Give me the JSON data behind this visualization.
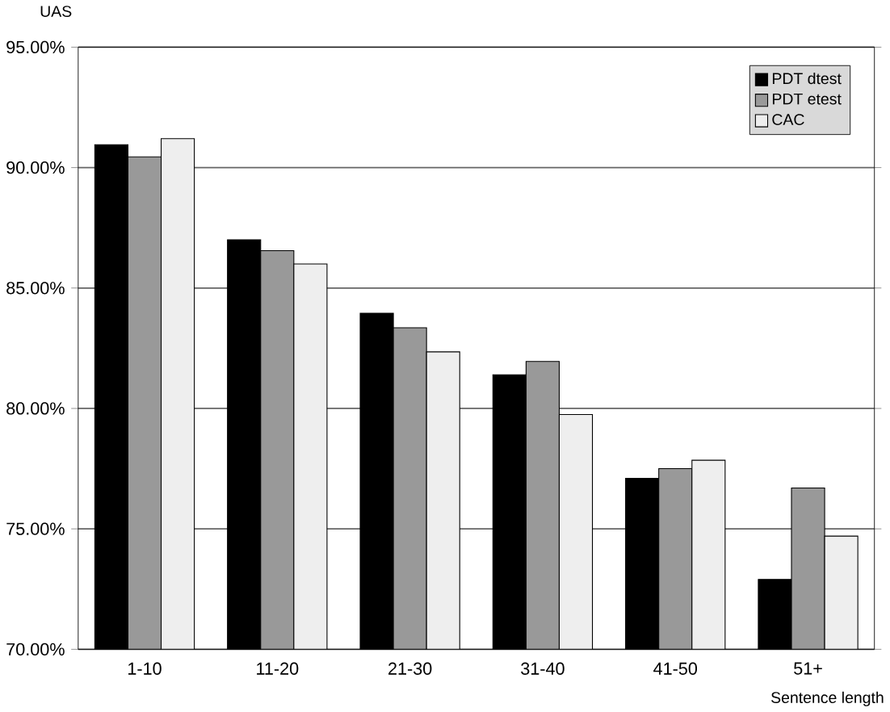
{
  "chart_data": {
    "type": "bar",
    "ylabel": "UAS",
    "xlabel": "Sentence length",
    "categories": [
      "1-10",
      "11-20",
      "21-30",
      "31-40",
      "41-50",
      "51+"
    ],
    "series": [
      {
        "name": "PDT dtest",
        "color": "#000000",
        "values": [
          90.95,
          87.0,
          83.95,
          81.4,
          77.1,
          72.9
        ]
      },
      {
        "name": "PDT etest",
        "color": "#999999",
        "values": [
          90.45,
          86.55,
          83.35,
          81.95,
          77.5,
          76.7
        ]
      },
      {
        "name": "CAC",
        "color": "#eeeeee",
        "values": [
          91.2,
          86.0,
          82.35,
          79.75,
          77.85,
          74.7
        ]
      }
    ],
    "ylim": [
      70,
      95
    ],
    "yticks": [
      {
        "value": 70,
        "label": "70.00%"
      },
      {
        "value": 75,
        "label": "75.00%"
      },
      {
        "value": 80,
        "label": "80.00%"
      },
      {
        "value": 85,
        "label": "85.00%"
      },
      {
        "value": 90,
        "label": "90.00%"
      },
      {
        "value": 95,
        "label": "95.00%"
      }
    ],
    "grid": "y",
    "legend": "top right"
  }
}
